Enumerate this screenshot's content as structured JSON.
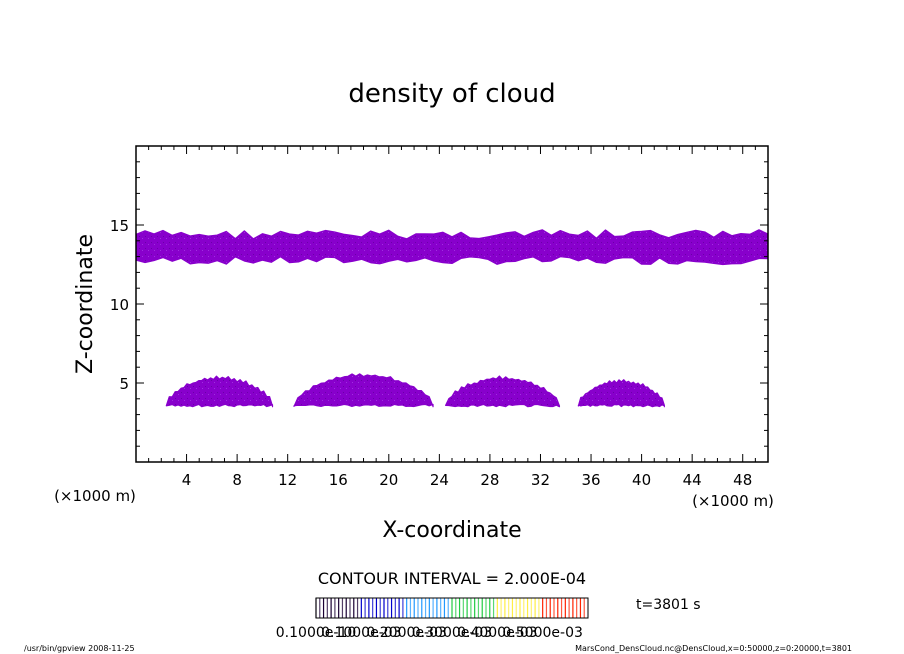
{
  "chart_data": {
    "type": "heatmap",
    "title": "density of cloud",
    "xlabel": "X-coordinate",
    "ylabel": "Z-coordinate",
    "x_unit": "(×1000 m)",
    "xlim": [
      0,
      50
    ],
    "ylim": [
      0,
      20
    ],
    "x_ticks": [
      4,
      8,
      12,
      16,
      20,
      24,
      28,
      32,
      36,
      40,
      44,
      48
    ],
    "y_ticks": [
      5,
      10,
      15
    ],
    "grid": false,
    "contour_interval": "CONTOUR INTERVAL = 2.000E-04",
    "time_label": "t=3801 s",
    "colorbar_labels": [
      "0.1000e-10",
      "0.1000e-03",
      "0.2000e-03",
      "0.3000e-03",
      "0.4000e-03",
      "0.5000e-03"
    ],
    "colorbar_colors": [
      "#1a0033",
      "#0000cc",
      "#2299ff",
      "#22cc44",
      "#ffee44",
      "#ff2200"
    ],
    "cloud_color": "#8800cc",
    "regions": [
      {
        "name": "upper cloud layer",
        "x_range": [
          0,
          50
        ],
        "z_range": [
          12.5,
          14.7
        ]
      },
      {
        "name": "cloud 1",
        "x_range": [
          2.4,
          10.8
        ],
        "z_peak": 5.3,
        "z_base": 3.6
      },
      {
        "name": "cloud 2",
        "x_range": [
          12.5,
          23.5
        ],
        "z_peak": 5.5,
        "z_base": 3.6
      },
      {
        "name": "cloud 3",
        "x_range": [
          24.5,
          33.5
        ],
        "z_peak": 5.3,
        "z_base": 3.6
      },
      {
        "name": "cloud 4",
        "x_range": [
          35.0,
          41.8
        ],
        "z_peak": 5.1,
        "z_base": 3.6
      }
    ]
  },
  "footer": {
    "left": "/usr/bin/gpview   2008-11-25",
    "right": "MarsCond_DensCloud.nc@DensCloud,x=0:50000,z=0:20000,t=3801"
  }
}
